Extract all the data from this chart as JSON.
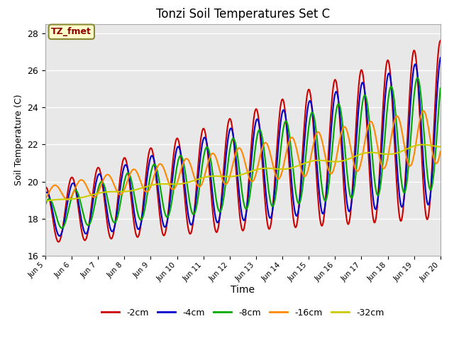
{
  "title": "Tonzi Soil Temperatures Set C",
  "xlabel": "Time",
  "ylabel": "Soil Temperature (C)",
  "ylim": [
    16,
    28.5
  ],
  "xlim": [
    0,
    360
  ],
  "annotation": "TZ_fmet",
  "bg_color": "#e8e8e8",
  "fig_bg": "#ffffff",
  "grid_color": "#ffffff",
  "xtick_labels": [
    "Jun 5",
    "Jun 6",
    "Jun 7",
    "Jun 8",
    "Jun 9",
    "Jun 10",
    "Jun 11",
    "Jun 12",
    "Jun 13",
    "Jun 14",
    "Jun 15",
    "Jun 16",
    "Jun 17",
    "Jun 18",
    "Jun 19",
    "Jun 20"
  ],
  "xtick_positions": [
    0,
    24,
    48,
    72,
    96,
    120,
    144,
    168,
    192,
    216,
    240,
    264,
    288,
    312,
    336,
    360
  ],
  "legend": [
    {
      "label": "-2cm",
      "color": "#cc0000",
      "lw": 1.5
    },
    {
      "label": "-4cm",
      "color": "#0000cc",
      "lw": 1.5
    },
    {
      "label": "-8cm",
      "color": "#00aa00",
      "lw": 1.5
    },
    {
      "label": "-16cm",
      "color": "#ff8800",
      "lw": 1.5
    },
    {
      "label": "-32cm",
      "color": "#cccc00",
      "lw": 1.5
    }
  ],
  "n_points": 721
}
